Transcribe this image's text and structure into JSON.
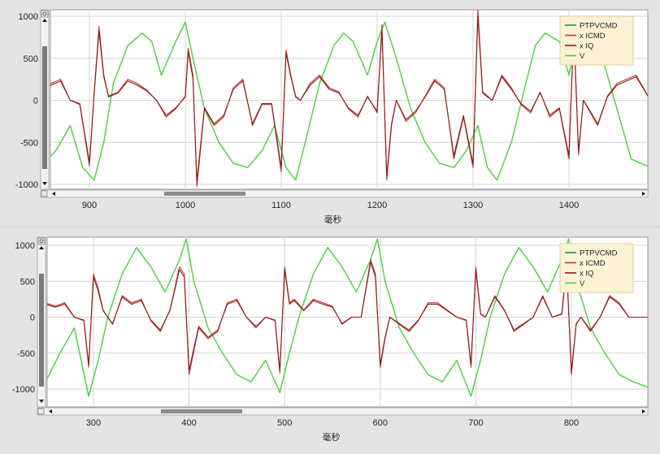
{
  "colors": {
    "PTPVCMD": "#1f8f1f",
    "x ICMD": "#c0392b",
    "x IQ": "#8b1a1a",
    "V": "#49d13a",
    "legend_bg": "#fdf3d4",
    "legend_border": "#d9c48a",
    "grid": "#d4d4d4"
  },
  "chart_data": [
    {
      "type": "line",
      "xlabel": "毫秒",
      "xlim": [
        850,
        1485
      ],
      "ylim": [
        -1050,
        1050
      ],
      "xticks": [
        "900",
        "1000",
        "1100",
        "1200",
        "1300",
        "1400"
      ],
      "yticks": [
        "1000",
        "500",
        "0",
        "-500",
        "-1000"
      ],
      "legend": [
        "PTPVCMD",
        "x ICMD",
        "x IQ",
        "V"
      ],
      "legend_position": "top-right",
      "grid": true,
      "series": [
        {
          "name": "V",
          "x": [
            850,
            865,
            880,
            893,
            905,
            915,
            925,
            940,
            955,
            965,
            975,
            990,
            1000,
            1008,
            1020,
            1035,
            1050,
            1065,
            1080,
            1093,
            1105,
            1115,
            1125,
            1140,
            1155,
            1165,
            1175,
            1190,
            1200,
            1208,
            1220,
            1235,
            1250,
            1265,
            1280,
            1293,
            1305,
            1315,
            1325,
            1340,
            1355,
            1365,
            1375,
            1390,
            1400,
            1408,
            1420,
            1435,
            1450,
            1465,
            1485
          ],
          "y": [
            -780,
            -600,
            -300,
            -800,
            -950,
            -500,
            200,
            650,
            800,
            700,
            300,
            700,
            930,
            500,
            -100,
            -500,
            -750,
            -800,
            -600,
            -300,
            -800,
            -950,
            -500,
            200,
            650,
            800,
            700,
            300,
            700,
            930,
            500,
            -100,
            -500,
            -750,
            -800,
            -600,
            -300,
            -800,
            -950,
            -500,
            200,
            650,
            800,
            700,
            300,
            700,
            930,
            500,
            -100,
            -700,
            -800
          ]
        },
        {
          "name": "x ICMD",
          "x": [
            850,
            860,
            870,
            880,
            890,
            900,
            905,
            910,
            915,
            920,
            930,
            940,
            950,
            960,
            970,
            980,
            990,
            1000,
            1003,
            1008,
            1012,
            1020,
            1030,
            1040,
            1050,
            1060,
            1070,
            1080,
            1090,
            1100,
            1105,
            1110,
            1115,
            1120,
            1130,
            1140,
            1150,
            1160,
            1170,
            1180,
            1190,
            1200,
            1205,
            1210,
            1215,
            1220,
            1230,
            1240,
            1250,
            1260,
            1270,
            1280,
            1290,
            1300,
            1305,
            1310,
            1315,
            1320,
            1330,
            1340,
            1350,
            1360,
            1370,
            1380,
            1390,
            1400,
            1405,
            1410,
            1415,
            1420,
            1430,
            1440,
            1450,
            1460,
            1470,
            1485
          ],
          "y": [
            50,
            200,
            250,
            0,
            -50,
            -780,
            100,
            880,
            300,
            50,
            100,
            250,
            200,
            120,
            0,
            -200,
            -100,
            50,
            620,
            300,
            -1030,
            -100,
            -300,
            -200,
            150,
            250,
            -300,
            -50,
            -50,
            -850,
            600,
            300,
            50,
            0,
            200,
            300,
            150,
            100,
            -100,
            -200,
            50,
            -150,
            900,
            -950,
            -300,
            0,
            -250,
            -150,
            50,
            250,
            150,
            -700,
            -200,
            -800,
            1080,
            100,
            50,
            0,
            300,
            150,
            -50,
            -150,
            100,
            -200,
            -100,
            -700,
            900,
            -650,
            0,
            -100,
            -300,
            50,
            200,
            250,
            300,
            0
          ]
        },
        {
          "name": "x IQ",
          "x": [
            850,
            860,
            870,
            880,
            890,
            900,
            905,
            910,
            915,
            920,
            930,
            940,
            950,
            960,
            970,
            980,
            990,
            1000,
            1003,
            1008,
            1012,
            1020,
            1030,
            1040,
            1050,
            1060,
            1070,
            1080,
            1090,
            1100,
            1105,
            1110,
            1115,
            1120,
            1130,
            1140,
            1150,
            1160,
            1170,
            1180,
            1190,
            1200,
            1205,
            1210,
            1215,
            1220,
            1230,
            1240,
            1250,
            1260,
            1270,
            1280,
            1290,
            1300,
            1305,
            1310,
            1315,
            1320,
            1330,
            1340,
            1350,
            1360,
            1370,
            1380,
            1390,
            1400,
            1405,
            1410,
            1415,
            1420,
            1430,
            1440,
            1450,
            1460,
            1470,
            1485
          ],
          "y": [
            30,
            180,
            230,
            0,
            -40,
            -740,
            80,
            820,
            280,
            40,
            90,
            230,
            180,
            110,
            0,
            -180,
            -90,
            40,
            580,
            260,
            -960,
            -90,
            -280,
            -180,
            130,
            230,
            -280,
            -40,
            -40,
            -800,
            560,
            280,
            40,
            0,
            180,
            280,
            130,
            90,
            -90,
            -180,
            40,
            -130,
            840,
            -900,
            -280,
            0,
            -230,
            -130,
            40,
            230,
            130,
            -660,
            -180,
            -760,
            1000,
            90,
            40,
            0,
            280,
            130,
            -40,
            -130,
            90,
            -180,
            -90,
            -660,
            840,
            -610,
            0,
            -90,
            -280,
            40,
            180,
            230,
            280,
            0
          ]
        }
      ]
    },
    {
      "type": "line",
      "xlabel": "毫秒",
      "xlim": [
        250,
        885
      ],
      "ylim": [
        -1180,
        1150
      ],
      "xticks": [
        "300",
        "400",
        "500",
        "600",
        "700",
        "800"
      ],
      "yticks": [
        "1000",
        "500",
        "0",
        "-500",
        "-1000"
      ],
      "legend": [
        "PTPVCMD",
        "x ICMD",
        "x IQ",
        "V"
      ],
      "legend_position": "top-right",
      "grid": true,
      "series": [
        {
          "name": "V",
          "x": [
            250,
            265,
            280,
            295,
            305,
            315,
            330,
            345,
            360,
            375,
            390,
            397,
            405,
            420,
            435,
            450,
            465,
            480,
            495,
            505,
            515,
            530,
            545,
            560,
            575,
            590,
            597,
            605,
            620,
            635,
            650,
            665,
            680,
            695,
            705,
            715,
            730,
            745,
            760,
            775,
            790,
            797,
            805,
            820,
            835,
            850,
            865,
            885
          ],
          "y": [
            -900,
            -500,
            -150,
            -1100,
            -600,
            0,
            600,
            970,
            700,
            350,
            800,
            1090,
            500,
            -150,
            -500,
            -800,
            -900,
            -600,
            -1050,
            -500,
            0,
            600,
            970,
            700,
            350,
            800,
            1090,
            500,
            -150,
            -500,
            -800,
            -900,
            -600,
            -1100,
            -600,
            0,
            600,
            970,
            700,
            350,
            800,
            1090,
            500,
            -150,
            -500,
            -800,
            -900,
            -1000
          ]
        },
        {
          "name": "x ICMD",
          "x": [
            250,
            260,
            270,
            280,
            290,
            295,
            300,
            305,
            310,
            320,
            330,
            340,
            350,
            360,
            370,
            380,
            390,
            395,
            400,
            410,
            420,
            430,
            440,
            450,
            460,
            470,
            480,
            490,
            495,
            500,
            505,
            510,
            520,
            530,
            540,
            550,
            560,
            570,
            580,
            590,
            595,
            600,
            605,
            610,
            620,
            630,
            640,
            650,
            660,
            670,
            680,
            690,
            695,
            700,
            705,
            710,
            720,
            730,
            740,
            750,
            760,
            770,
            780,
            790,
            795,
            800,
            805,
            810,
            820,
            830,
            840,
            850,
            860,
            870,
            885
          ],
          "y": [
            200,
            150,
            200,
            0,
            -50,
            -700,
            600,
            400,
            100,
            -100,
            300,
            200,
            250,
            -50,
            -200,
            100,
            700,
            600,
            -800,
            -150,
            -300,
            -200,
            200,
            250,
            0,
            -150,
            0,
            -50,
            -780,
            700,
            200,
            250,
            100,
            250,
            200,
            150,
            -100,
            0,
            0,
            800,
            600,
            -700,
            -300,
            0,
            -100,
            -200,
            -50,
            200,
            200,
            100,
            0,
            -50,
            -700,
            700,
            50,
            0,
            300,
            100,
            -200,
            -100,
            0,
            300,
            0,
            50,
            750,
            -800,
            -100,
            0,
            -200,
            0,
            300,
            200,
            0,
            0,
            0
          ]
        },
        {
          "name": "x IQ",
          "x": [
            250,
            260,
            270,
            280,
            290,
            295,
            300,
            305,
            310,
            320,
            330,
            340,
            350,
            360,
            370,
            380,
            390,
            395,
            400,
            410,
            420,
            430,
            440,
            450,
            460,
            470,
            480,
            490,
            495,
            500,
            505,
            510,
            520,
            530,
            540,
            550,
            560,
            570,
            580,
            590,
            595,
            600,
            605,
            610,
            620,
            630,
            640,
            650,
            660,
            670,
            680,
            690,
            695,
            700,
            705,
            710,
            720,
            730,
            740,
            750,
            760,
            770,
            780,
            790,
            795,
            800,
            805,
            810,
            820,
            830,
            840,
            850,
            860,
            870,
            885
          ],
          "y": [
            180,
            140,
            180,
            0,
            -40,
            -660,
            560,
            360,
            90,
            -90,
            280,
            180,
            230,
            -40,
            -180,
            90,
            660,
            560,
            -740,
            -130,
            -280,
            -180,
            180,
            230,
            0,
            -130,
            0,
            -40,
            -740,
            660,
            180,
            230,
            90,
            230,
            180,
            140,
            -90,
            0,
            0,
            760,
            560,
            -660,
            -280,
            0,
            -90,
            -180,
            -40,
            180,
            180,
            90,
            0,
            -40,
            -660,
            660,
            40,
            0,
            280,
            90,
            -180,
            -90,
            0,
            280,
            0,
            40,
            700,
            -760,
            -90,
            0,
            -180,
            0,
            280,
            180,
            0,
            0,
            0
          ]
        }
      ]
    }
  ]
}
